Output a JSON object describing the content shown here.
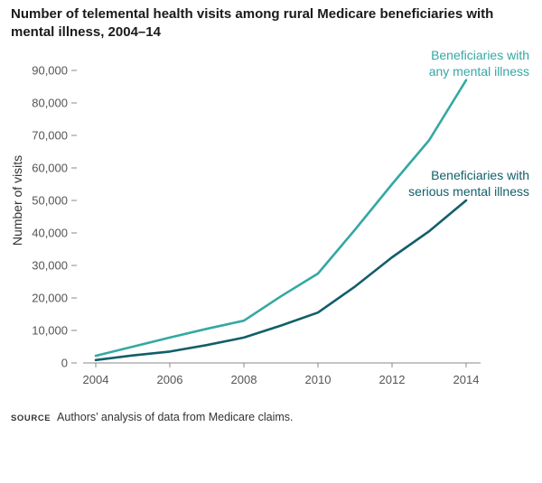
{
  "chart_data": {
    "type": "line",
    "title": "Number of telemental health visits among rural Medicare beneficiaries with mental illness, 2004–14",
    "ylabel": "Number of visits",
    "xlabel": "",
    "ylim": [
      0,
      90000
    ],
    "xlim": [
      2004,
      2014
    ],
    "yticks": [
      0,
      10000,
      20000,
      30000,
      40000,
      50000,
      60000,
      70000,
      80000,
      90000
    ],
    "ytick_labels": [
      "0",
      "10,000",
      "20,000",
      "30,000",
      "40,000",
      "50,000",
      "60,000",
      "70,000",
      "80,000",
      "90,000"
    ],
    "xticks": [
      2004,
      2006,
      2008,
      2010,
      2012,
      2014
    ],
    "xtick_labels": [
      "2004",
      "2006",
      "2008",
      "2010",
      "2012",
      "2014"
    ],
    "grid": false,
    "legend": "direct-labels",
    "series": [
      {
        "name": "Beneficiaries with any mental illness",
        "label_lines": [
          "Beneficiaries with",
          "any mental illness"
        ],
        "color": "#35a8a4",
        "x": [
          2004,
          2005,
          2006,
          2007,
          2008,
          2009,
          2010,
          2011,
          2012,
          2013,
          2014
        ],
        "values": [
          2200,
          5000,
          7800,
          10500,
          13000,
          20500,
          27500,
          41000,
          55000,
          68500,
          87000
        ]
      },
      {
        "name": "Beneficiaries with serious mental illness",
        "label_lines": [
          "Beneficiaries with",
          "serious mental illness"
        ],
        "color": "#125e6a",
        "x": [
          2004,
          2005,
          2006,
          2007,
          2008,
          2009,
          2010,
          2011,
          2012,
          2013,
          2014
        ],
        "values": [
          900,
          2300,
          3500,
          5500,
          7800,
          11500,
          15500,
          23500,
          32500,
          40500,
          50000
        ]
      }
    ]
  },
  "source": {
    "tag": "SOURCE",
    "text": "Authors’ analysis of data from Medicare claims."
  }
}
